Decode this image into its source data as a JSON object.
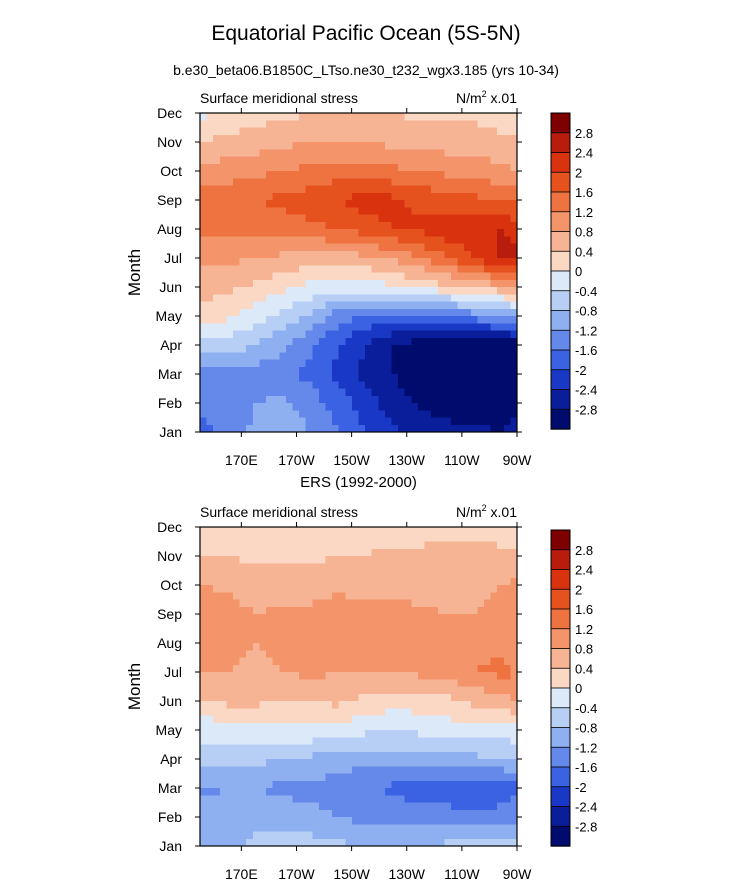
{
  "figure": {
    "title": "Equatorial Pacific Ocean (5S-5N)",
    "subtitle": "b.e30_beta06.B1850C_LTso.ne30_t232_wgx3.185 (yrs 10-34)"
  },
  "colorbar": {
    "labels": [
      "2.8",
      "2.4",
      "2",
      "1.6",
      "1.2",
      "0.8",
      "0.4",
      "0",
      "-0.4",
      "-0.8",
      "-1.2",
      "-1.6",
      "-2",
      "-2.4",
      "-2.8"
    ],
    "colors": [
      "#7f0000",
      "#b71c0c",
      "#d8320e",
      "#e6521e",
      "#ee7340",
      "#f3946a",
      "#f7b495",
      "#fbd8c4",
      "#dce9f9",
      "#b7cff5",
      "#8fb0f0",
      "#6489ea",
      "#3a62e2",
      "#1a38c6",
      "#0a1d9b",
      "#000b6e"
    ]
  },
  "chart_data": [
    {
      "type": "heatmap",
      "panel": "model",
      "title": "",
      "left_label": "Surface meridional stress",
      "units_label": "N/m",
      "units_sup": "2",
      "units_suffix": " x.01",
      "ylabel": "Month",
      "xlabel": "",
      "ytick_labels": [
        "Jan",
        "Feb",
        "Mar",
        "Apr",
        "May",
        "Jun",
        "Jul",
        "Aug",
        "Sep",
        "Oct",
        "Nov",
        "Dec"
      ],
      "xtick_labels": [
        "170E",
        "170W",
        "150W",
        "130W",
        "110W",
        "90W"
      ],
      "xtick_values": [
        170,
        190,
        210,
        230,
        250,
        270
      ],
      "xlim": [
        155,
        270
      ],
      "ylim": [
        1,
        12
      ],
      "levels": [
        -2.8,
        -2.4,
        -2,
        -1.6,
        -1.2,
        -0.8,
        -0.4,
        0,
        0.4,
        0.8,
        1.2,
        1.6,
        2,
        2.4,
        2.8
      ],
      "x": [
        155,
        165,
        175,
        185,
        195,
        205,
        215,
        225,
        235,
        245,
        255,
        265,
        270
      ],
      "y": [
        1,
        2,
        3,
        4,
        5,
        6,
        7,
        8,
        9,
        10,
        11,
        12
      ],
      "z": [
        [
          -1.7,
          -1.5,
          -1.1,
          -0.8,
          -1.2,
          -1.6,
          -2.0,
          -2.3,
          -2.5,
          -2.6,
          -2.7,
          -2.8,
          -2.6
        ],
        [
          -1.5,
          -1.4,
          -1.2,
          -1.1,
          -1.4,
          -1.8,
          -2.2,
          -2.6,
          -2.9,
          -3.1,
          -3.1,
          -3.1,
          -3.0
        ],
        [
          -1.4,
          -1.4,
          -1.4,
          -1.5,
          -1.7,
          -2.1,
          -2.5,
          -2.8,
          -3.1,
          -3.3,
          -3.3,
          -3.3,
          -3.2
        ],
        [
          -0.5,
          -0.6,
          -0.8,
          -1.1,
          -1.5,
          -2.0,
          -2.4,
          -2.8,
          -3.0,
          -3.2,
          -3.2,
          -3.2,
          -3.1
        ],
        [
          0.2,
          0.1,
          -0.2,
          -0.5,
          -0.9,
          -1.4,
          -1.7,
          -1.8,
          -1.7,
          -1.6,
          -1.4,
          -1.2,
          -1.0
        ],
        [
          0.6,
          0.5,
          0.3,
          0.1,
          -0.1,
          -0.2,
          -0.2,
          -0.1,
          0.1,
          0.3,
          0.5,
          0.7,
          0.8
        ],
        [
          0.9,
          0.9,
          0.8,
          0.7,
          0.6,
          0.6,
          0.7,
          0.9,
          1.2,
          1.6,
          2.0,
          2.5,
          2.6
        ],
        [
          1.3,
          1.3,
          1.3,
          1.4,
          1.5,
          1.6,
          1.8,
          2.0,
          2.1,
          2.3,
          2.4,
          2.4,
          2.2
        ],
        [
          1.5,
          1.5,
          1.6,
          1.7,
          1.8,
          2.0,
          2.2,
          2.1,
          1.9,
          1.8,
          1.7,
          1.6,
          1.5
        ],
        [
          1.0,
          1.0,
          1.1,
          1.2,
          1.3,
          1.4,
          1.4,
          1.3,
          1.2,
          1.1,
          1.0,
          0.9,
          0.8
        ],
        [
          0.4,
          0.5,
          0.6,
          0.7,
          0.8,
          0.8,
          0.8,
          0.7,
          0.7,
          0.6,
          0.6,
          0.5,
          0.5
        ],
        [
          -0.1,
          0.1,
          0.2,
          0.3,
          0.4,
          0.4,
          0.4,
          0.4,
          0.3,
          0.3,
          0.3,
          0.2,
          0.2
        ]
      ]
    },
    {
      "type": "heatmap",
      "panel": "observations",
      "title": "ERS (1992-2000)",
      "left_label": "Surface meridional stress",
      "units_label": "N/m",
      "units_sup": "2",
      "units_suffix": " x.01",
      "ylabel": "Month",
      "xlabel": "",
      "ytick_labels": [
        "Jan",
        "Feb",
        "Mar",
        "Apr",
        "May",
        "Jun",
        "Jul",
        "Aug",
        "Sep",
        "Oct",
        "Nov",
        "Dec"
      ],
      "xtick_labels": [
        "170E",
        "170W",
        "150W",
        "130W",
        "110W",
        "90W"
      ],
      "xtick_values": [
        170,
        190,
        210,
        230,
        250,
        270
      ],
      "xlim": [
        155,
        270
      ],
      "ylim": [
        1,
        12
      ],
      "levels": [
        -2.8,
        -2.4,
        -2,
        -1.6,
        -1.2,
        -0.8,
        -0.4,
        0,
        0.4,
        0.8,
        1.2,
        1.6,
        2,
        2.4,
        2.8
      ],
      "x": [
        155,
        165,
        175,
        185,
        195,
        205,
        215,
        225,
        235,
        245,
        255,
        265,
        270
      ],
      "y": [
        1,
        2,
        3,
        4,
        5,
        6,
        7,
        8,
        9,
        10,
        11,
        12
      ],
      "z": [
        [
          -0.8,
          -0.9,
          -0.7,
          -0.6,
          -0.6,
          -0.7,
          -0.8,
          -0.8,
          -0.8,
          -0.7,
          -0.7,
          -0.7,
          -0.6
        ],
        [
          -1.0,
          -1.0,
          -0.9,
          -1.0,
          -1.1,
          -1.2,
          -1.3,
          -1.3,
          -1.4,
          -1.4,
          -1.5,
          -1.4,
          -1.3
        ],
        [
          -1.3,
          -1.2,
          -1.2,
          -1.3,
          -1.3,
          -1.4,
          -1.5,
          -1.7,
          -1.8,
          -1.9,
          -1.9,
          -1.9,
          -1.7
        ],
        [
          -0.5,
          -0.6,
          -0.7,
          -0.8,
          -0.9,
          -1.0,
          -1.1,
          -1.0,
          -1.0,
          -0.9,
          -0.9,
          -0.8,
          -0.8
        ],
        [
          -0.3,
          -0.2,
          -0.2,
          -0.1,
          -0.1,
          -0.2,
          -0.3,
          -0.4,
          -0.3,
          -0.2,
          -0.2,
          -0.2,
          -0.1
        ],
        [
          0.4,
          0.5,
          0.5,
          0.4,
          0.4,
          0.5,
          0.3,
          0.2,
          0.2,
          0.3,
          0.5,
          0.7,
          0.8
        ],
        [
          0.8,
          0.8,
          0.7,
          0.8,
          0.9,
          0.8,
          0.8,
          0.8,
          0.9,
          1.0,
          1.2,
          1.3,
          1.2
        ],
        [
          1.0,
          0.9,
          0.8,
          0.9,
          1.0,
          1.1,
          1.1,
          1.0,
          1.0,
          1.0,
          1.1,
          1.1,
          1.0
        ],
        [
          1.1,
          1.0,
          0.8,
          0.9,
          0.9,
          1.0,
          0.9,
          0.9,
          0.9,
          0.8,
          0.8,
          0.9,
          1.2
        ],
        [
          0.8,
          0.7,
          0.6,
          0.6,
          0.6,
          0.7,
          0.7,
          0.7,
          0.6,
          0.6,
          0.7,
          0.8,
          0.9
        ],
        [
          0.4,
          0.4,
          0.3,
          0.3,
          0.3,
          0.4,
          0.4,
          0.5,
          0.5,
          0.6,
          0.6,
          0.5,
          0.5
        ],
        [
          0.1,
          0.1,
          0.1,
          0.0,
          0.1,
          0.1,
          0.2,
          0.2,
          0.2,
          0.2,
          0.2,
          0.2,
          0.1
        ]
      ]
    }
  ]
}
